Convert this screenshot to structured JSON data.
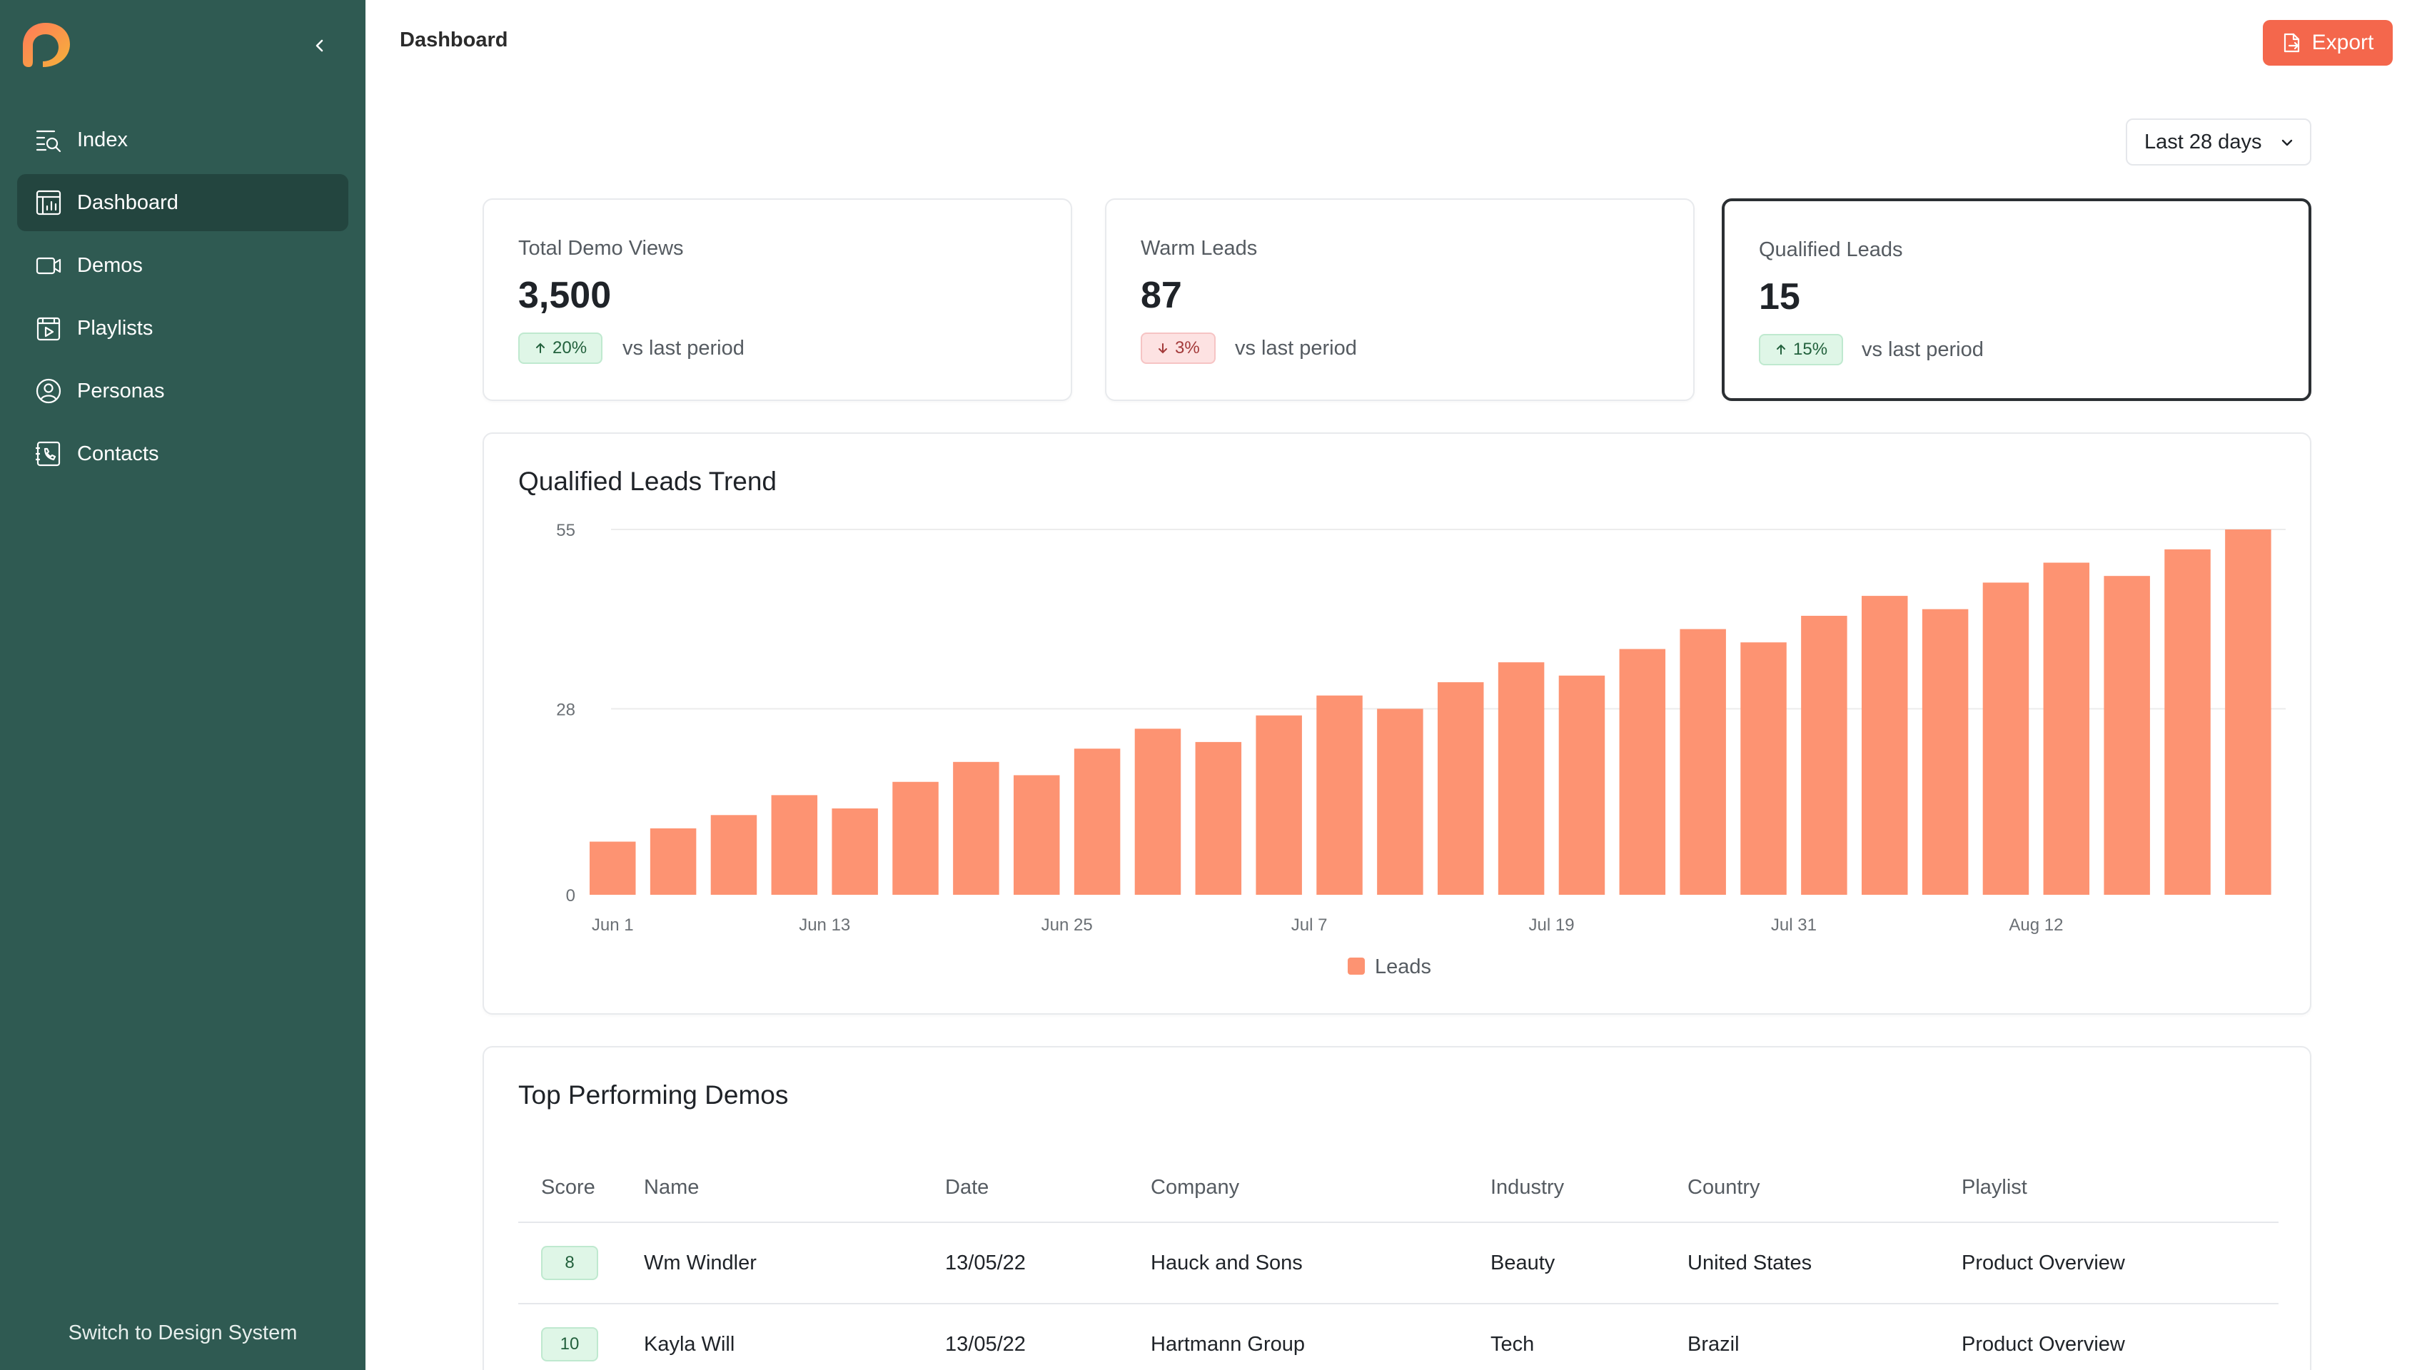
{
  "sidebar": {
    "items": [
      {
        "label": "Index",
        "icon": "index-search-icon"
      },
      {
        "label": "Dashboard",
        "icon": "dashboard-icon",
        "active": true
      },
      {
        "label": "Demos",
        "icon": "video-icon"
      },
      {
        "label": "Playlists",
        "icon": "playlist-icon"
      },
      {
        "label": "Personas",
        "icon": "persona-icon"
      },
      {
        "label": "Contacts",
        "icon": "contacts-icon"
      }
    ],
    "footer_link": "Switch to Design System"
  },
  "header": {
    "title": "Dashboard",
    "export_label": "Export"
  },
  "range": {
    "selected": "Last 28 days"
  },
  "stats": [
    {
      "label": "Total Demo Views",
      "value": "3,500",
      "change": "20%",
      "direction": "up",
      "compare": "vs last period"
    },
    {
      "label": "Warm Leads",
      "value": "87",
      "change": "3%",
      "direction": "down",
      "compare": "vs last period"
    },
    {
      "label": "Qualified Leads",
      "value": "15",
      "change": "15%",
      "direction": "up",
      "compare": "vs last period",
      "selected": true
    }
  ],
  "chart_data": {
    "type": "bar",
    "title": "Qualified Leads Trend",
    "xlabel": "",
    "ylabel": "",
    "ylim": [
      0,
      55
    ],
    "yticks": [
      0,
      28,
      55
    ],
    "xtick_labels": [
      "Jun 1",
      "Jun 13",
      "Jun 25",
      "Jul 7",
      "Jul 19",
      "Jul 31",
      "Aug 12"
    ],
    "bar_color": "#fd9372",
    "grid": true,
    "legend_position": "bottom",
    "series": [
      {
        "name": "Leads",
        "values": [
          8,
          10,
          12,
          15,
          13,
          17,
          20,
          18,
          22,
          25,
          23,
          27,
          30,
          28,
          32,
          35,
          33,
          37,
          40,
          38,
          42,
          45,
          43,
          47,
          50,
          48,
          52,
          55
        ]
      }
    ]
  },
  "table": {
    "title": "Top Performing Demos",
    "columns": [
      "Score",
      "Name",
      "Date",
      "Company",
      "Industry",
      "Country",
      "Playlist"
    ],
    "rows": [
      {
        "score": "8",
        "name": "Wm Windler",
        "date": "13/05/22",
        "company": "Hauck and Sons",
        "industry": "Beauty",
        "country": "United States",
        "playlist": "Product Overview"
      },
      {
        "score": "10",
        "name": "Kayla Will",
        "date": "13/05/22",
        "company": "Hartmann Group",
        "industry": "Tech",
        "country": "Brazil",
        "playlist": "Product Overview"
      }
    ]
  },
  "colors": {
    "sidebar_bg": "#2f5a52",
    "sidebar_active": "#23453f",
    "accent": "#f4674c",
    "bar": "#fd9372"
  }
}
